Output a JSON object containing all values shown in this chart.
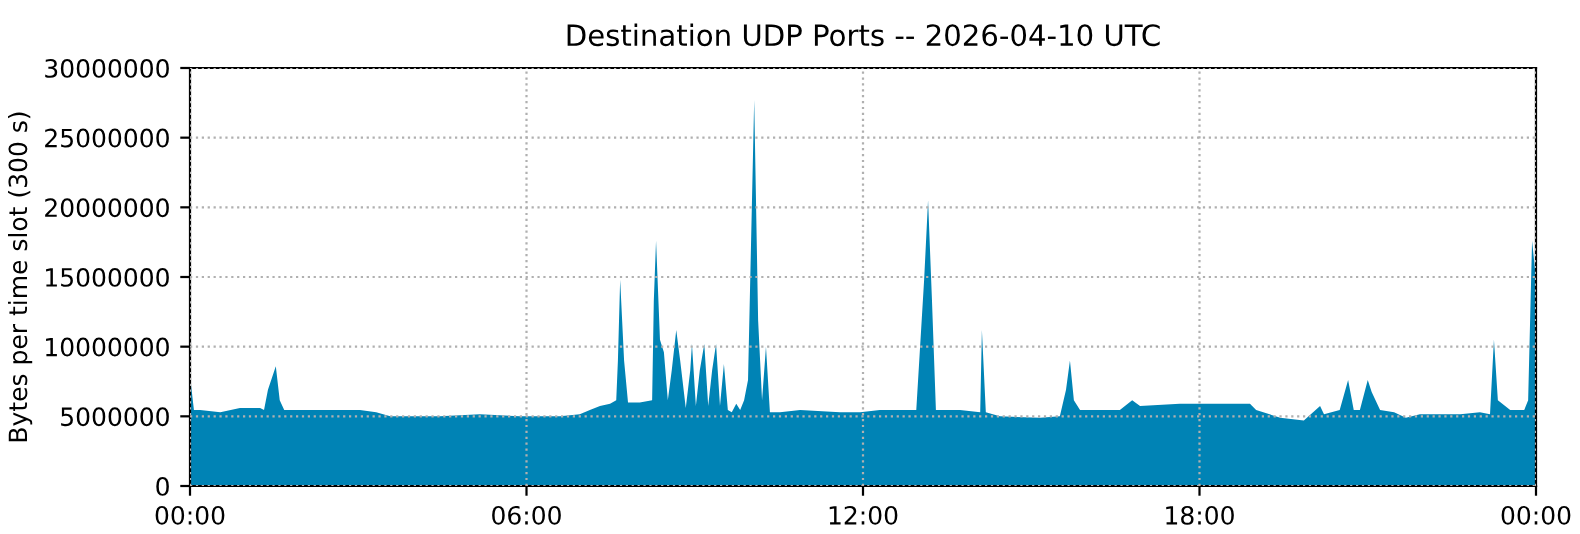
{
  "chart_data": {
    "type": "area",
    "title": "Destination UDP Ports -- 2026-04-10 UTC",
    "ylabel": "Bytes per time slot (300 s)",
    "x": [
      0,
      0.07,
      0.18,
      0.54,
      0.89,
      1.25,
      1.32,
      1.39,
      1.53,
      1.6,
      1.68,
      2.32,
      2.67,
      3.03,
      3.32,
      3.57,
      3.74,
      4.46,
      5.17,
      5.88,
      6.6,
      6.95,
      7.13,
      7.31,
      7.49,
      7.6,
      7.63,
      7.67,
      7.74,
      7.81,
      8.02,
      8.24,
      8.27,
      8.31,
      8.38,
      8.45,
      8.52,
      8.59,
      8.67,
      8.74,
      8.84,
      8.92,
      8.95,
      9.02,
      9.09,
      9.17,
      9.24,
      9.31,
      9.38,
      9.45,
      9.52,
      9.59,
      9.66,
      9.74,
      9.81,
      9.88,
      9.95,
      10.06,
      10.13,
      10.2,
      10.27,
      10.34,
      10.52,
      10.88,
      11.59,
      11.95,
      12.3,
      12.66,
      12.95,
      13.09,
      13.16,
      13.23,
      13.3,
      13.73,
      14.09,
      14.12,
      14.19,
      14.44,
      15.16,
      15.51,
      15.62,
      15.69,
      15.76,
      15.87,
      16.58,
      16.8,
      16.94,
      17.65,
      18.37,
      18.9,
      19.01,
      19.44,
      19.86,
      20.15,
      20.22,
      20.5,
      20.65,
      20.75,
      20.86,
      21.0,
      21.07,
      21.22,
      21.47,
      21.68,
      21.93,
      22.65,
      23.0,
      23.18,
      23.25,
      23.32,
      23.54,
      23.79,
      23.86,
      23.93,
      24.0
    ],
    "series": [
      {
        "color": "#0083b5",
        "values": [
          7900000,
          5450000,
          5450000,
          5300000,
          5600000,
          5600000,
          5450000,
          6900000,
          8600000,
          6150000,
          5450000,
          5450000,
          5450000,
          5450000,
          5300000,
          5000000,
          5000000,
          5000000,
          5150000,
          5000000,
          5000000,
          5150000,
          5450000,
          5750000,
          5900000,
          6150000,
          9000000,
          14800000,
          9000000,
          6000000,
          6000000,
          6150000,
          13300000,
          17600000,
          10500000,
          9600000,
          6150000,
          8300000,
          11200000,
          9000000,
          5600000,
          8300000,
          10200000,
          5750000,
          8300000,
          10200000,
          5750000,
          8300000,
          10200000,
          5750000,
          8750000,
          5450000,
          5300000,
          5900000,
          5450000,
          6150000,
          7600000,
          27700000,
          11900000,
          6150000,
          10000000,
          5300000,
          5300000,
          5450000,
          5300000,
          5300000,
          5450000,
          5450000,
          5450000,
          14800000,
          20500000,
          13300000,
          5450000,
          5450000,
          5300000,
          11200000,
          5300000,
          5000000,
          4900000,
          5000000,
          6900000,
          9000000,
          6150000,
          5450000,
          5450000,
          6150000,
          5750000,
          5900000,
          5900000,
          5900000,
          5450000,
          4900000,
          4700000,
          5750000,
          5150000,
          5450000,
          7600000,
          5450000,
          5450000,
          7600000,
          6750000,
          5450000,
          5300000,
          4900000,
          5150000,
          5150000,
          5300000,
          5150000,
          10500000,
          6150000,
          5450000,
          5450000,
          6150000,
          17600000,
          14800000
        ]
      }
    ],
    "xlim": [
      0,
      24
    ],
    "xticks": [
      {
        "value": 0,
        "label": "00:00"
      },
      {
        "value": 6,
        "label": "06:00"
      },
      {
        "value": 12,
        "label": "12:00"
      },
      {
        "value": 18,
        "label": "18:00"
      },
      {
        "value": 24,
        "label": "00:00"
      }
    ],
    "ylim": [
      0,
      30000000
    ],
    "yticks": [
      0,
      5000000,
      10000000,
      15000000,
      20000000,
      25000000,
      30000000
    ],
    "grid": true,
    "line_style": "dotted"
  }
}
